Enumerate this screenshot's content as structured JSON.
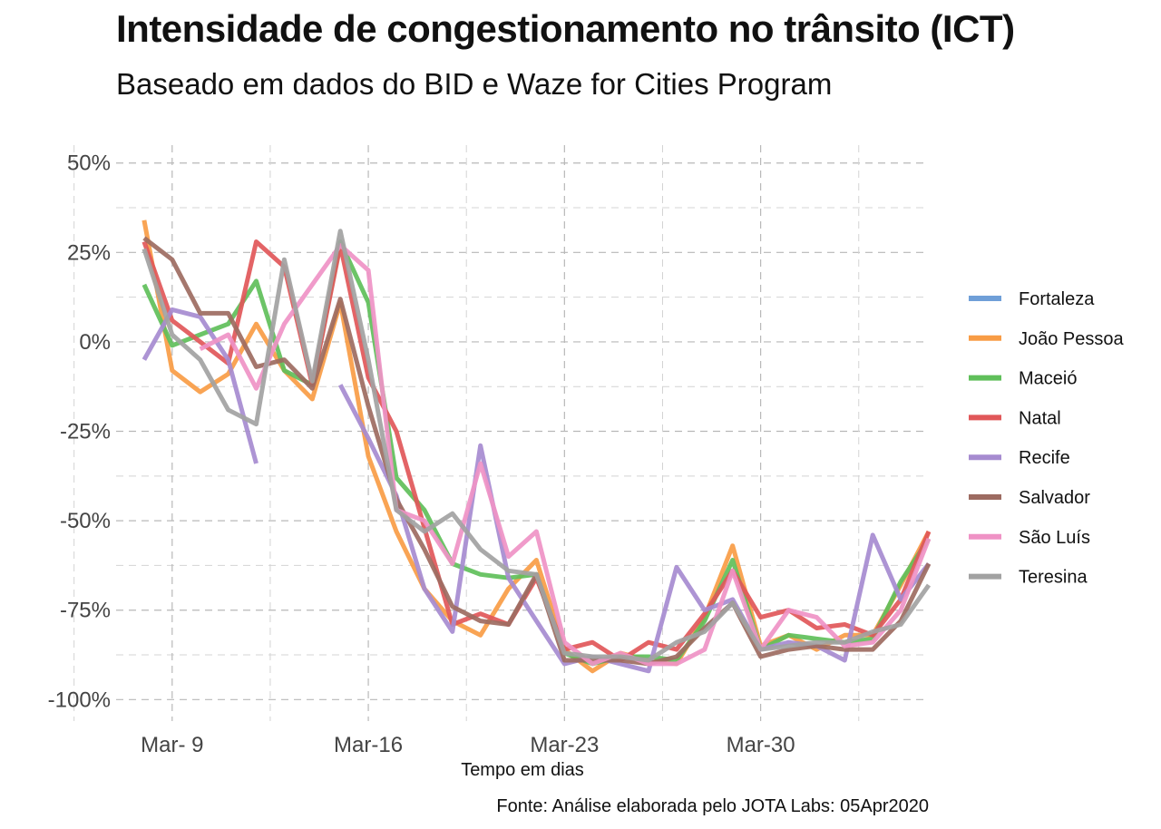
{
  "chart_data": {
    "type": "line",
    "title": "Intensidade de congestionamento no trânsito (ICT)",
    "subtitle": "Baseado em dados do BID e Waze for Cities Program",
    "caption": "Fonte: Análise elaborada pelo JOTA Labs: 05Apr2020",
    "xlabel": "Tempo em dias",
    "ylabel": "",
    "x": [
      "2020-03-08",
      "2020-03-09",
      "2020-03-10",
      "2020-03-11",
      "2020-03-12",
      "2020-03-13",
      "2020-03-14",
      "2020-03-15",
      "2020-03-16",
      "2020-03-17",
      "2020-03-18",
      "2020-03-19",
      "2020-03-20",
      "2020-03-21",
      "2020-03-22",
      "2020-03-23",
      "2020-03-24",
      "2020-03-25",
      "2020-03-26",
      "2020-03-27",
      "2020-03-28",
      "2020-03-29",
      "2020-03-30",
      "2020-03-31",
      "2020-04-01",
      "2020-04-02",
      "2020-04-03",
      "2020-04-04",
      "2020-04-05"
    ],
    "xlim": [
      "2020-03-07",
      "2020-04-05"
    ],
    "x_ticks": [
      {
        "date": "2020-03-09",
        "label": "Mar- 9"
      },
      {
        "date": "2020-03-16",
        "label": "Mar-16"
      },
      {
        "date": "2020-03-23",
        "label": "Mar-23"
      },
      {
        "date": "2020-03-30",
        "label": "Mar-30"
      }
    ],
    "ylim": [
      -106,
      55
    ],
    "y_ticks": [
      50,
      25,
      0,
      -25,
      -50,
      -75,
      -100
    ],
    "y_tick_labels": [
      "50%",
      "25%",
      "0%",
      "-25%",
      "-50%",
      "-75%",
      "-100%"
    ],
    "grid": "major and minor, dashed, gray",
    "legend_position": "right",
    "series": [
      {
        "name": "Fortaleza",
        "color": "#6f9fd8",
        "values": [
          null,
          null,
          null,
          null,
          null,
          null,
          null,
          null,
          null,
          null,
          null,
          null,
          null,
          null,
          null,
          null,
          null,
          null,
          null,
          null,
          null,
          null,
          null,
          null,
          null,
          null,
          null,
          null,
          null
        ]
      },
      {
        "name": "João Pessoa",
        "color": "#f89c45",
        "values": [
          34,
          -8,
          -14,
          -9,
          5,
          -8,
          -16,
          11,
          -32,
          -53,
          -69,
          -78,
          -82,
          -69,
          -61,
          -86,
          -92,
          -87,
          -89,
          -90,
          -77,
          -57,
          -85,
          -82,
          -86,
          -82,
          -82,
          -68,
          -53
        ]
      },
      {
        "name": "Maceió",
        "color": "#5fbf5a",
        "values": [
          16,
          -1,
          2,
          5,
          17,
          -8,
          -12,
          28,
          11,
          -38,
          -47,
          -62,
          -65,
          -66,
          -65,
          -87,
          -90,
          -88,
          -88,
          -89,
          -78,
          -61,
          -86,
          -82,
          -83,
          -84,
          -83,
          -67,
          -55
        ]
      },
      {
        "name": "Natal",
        "color": "#e15759",
        "values": [
          28,
          6,
          0,
          -6,
          28,
          21,
          -12,
          27,
          -10,
          -25,
          -52,
          -79,
          -76,
          -79,
          -66,
          -86,
          -84,
          -89,
          -84,
          -86,
          -76,
          -64,
          -77,
          -75,
          -80,
          -79,
          -82,
          -72,
          -53
        ]
      },
      {
        "name": "Recife",
        "color": "#a68bd0",
        "values": [
          -5,
          9,
          7,
          -5,
          -34,
          null,
          null,
          -12,
          -27,
          -43,
          -69,
          -81,
          -29,
          -66,
          -78,
          -90,
          -88,
          -90,
          -92,
          -63,
          -75,
          -72,
          -86,
          -84,
          -85,
          -89,
          -54,
          -72,
          -62
        ]
      },
      {
        "name": "Salvador",
        "color": "#9d6b61",
        "values": [
          29,
          23,
          8,
          8,
          -7,
          -5,
          -13,
          12,
          -18,
          -44,
          -58,
          -74,
          -78,
          -79,
          -65,
          -89,
          -89,
          -89,
          -90,
          -88,
          -80,
          -73,
          -88,
          -86,
          -85,
          -86,
          -86,
          -78,
          -62
        ]
      },
      {
        "name": "São Luís",
        "color": "#ef92c5",
        "values": [
          null,
          null,
          -2,
          2,
          -13,
          5,
          16,
          27,
          20,
          -47,
          -50,
          -62,
          -34,
          -60,
          -53,
          -84,
          -90,
          -87,
          -90,
          -90,
          -86,
          -64,
          -86,
          -75,
          -77,
          -85,
          -84,
          -75,
          -55
        ]
      },
      {
        "name": "Teresina",
        "color": "#a2a2a2",
        "values": [
          26,
          2,
          -5,
          -19,
          -23,
          23,
          -11,
          31,
          -5,
          -47,
          -53,
          -48,
          -58,
          -64,
          -65,
          -87,
          -88,
          -88,
          -89,
          -84,
          -81,
          -73,
          -86,
          -85,
          -84,
          -84,
          -81,
          -79,
          -68
        ]
      }
    ]
  }
}
